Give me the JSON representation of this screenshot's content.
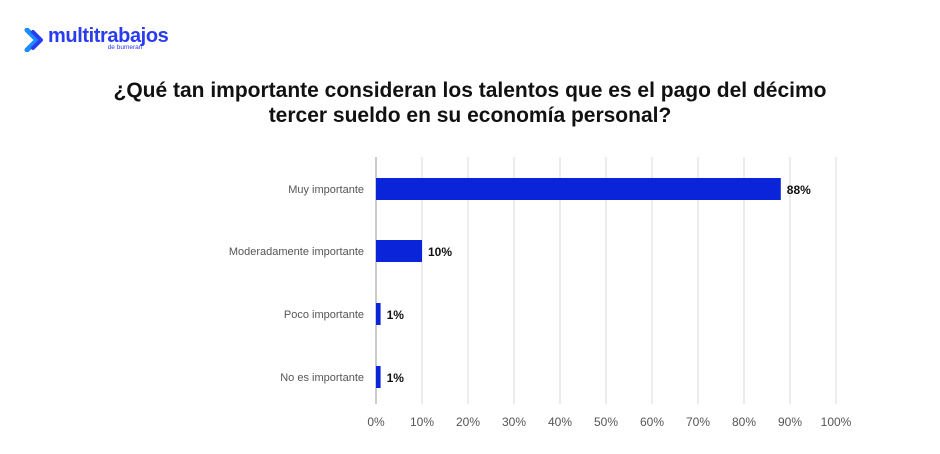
{
  "brand": {
    "name": "multitrabajos",
    "sub": "de bumeran"
  },
  "colors": {
    "bar": "#0a25d9",
    "brand": "#2a3cf0",
    "grid": "#d9d9d9"
  },
  "chart_data": {
    "type": "bar",
    "orientation": "horizontal",
    "title_lines": [
      "¿Qué tan importante consideran los talentos que es el pago del décimo",
      "tercer sueldo en su economía personal?"
    ],
    "categories": [
      "Muy importante",
      "Moderadamente importante",
      "Poco importante",
      "No es importante"
    ],
    "values": [
      88,
      10,
      1,
      1
    ],
    "value_labels": [
      "88%",
      "10%",
      "1%",
      "1%"
    ],
    "x_ticks": [
      0,
      10,
      20,
      30,
      40,
      50,
      60,
      70,
      80,
      90,
      100
    ],
    "x_tick_labels": [
      "0%",
      "10%",
      "20%",
      "30%",
      "40%",
      "50%",
      "60%",
      "70%",
      "80%",
      "90%",
      "100%"
    ],
    "xlim": [
      0,
      100
    ],
    "grid": true,
    "legend": "none"
  }
}
